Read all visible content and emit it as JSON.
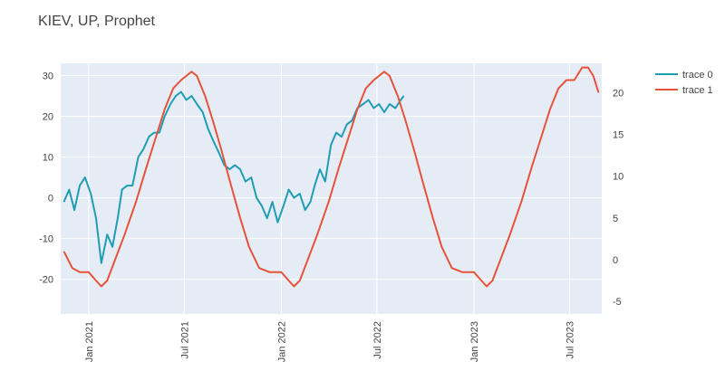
{
  "chart_data": {
    "type": "line",
    "title": "KIEV, UP, Prophet",
    "x_tick_labels": [
      "Jan 2021",
      "Jul 2021",
      "Jan 2022",
      "Jul 2022",
      "Jan 2023",
      "Jul 2023"
    ],
    "y_left": {
      "ticks": [
        -20,
        -10,
        0,
        10,
        20,
        30
      ],
      "range": [
        -28.5,
        33
      ]
    },
    "y_right": {
      "ticks": [
        -5,
        0,
        5,
        10,
        15,
        20
      ],
      "range": [
        -6.5,
        23.5
      ]
    },
    "grid": true,
    "legend_position": "top-right",
    "series": [
      {
        "name": "trace 0",
        "axis": "left",
        "color": "#1f9db3",
        "points": [
          [
            "2020-11-15",
            -1
          ],
          [
            "2020-11-25",
            2
          ],
          [
            "2020-12-05",
            -3
          ],
          [
            "2020-12-15",
            3
          ],
          [
            "2020-12-25",
            5
          ],
          [
            "2021-01-05",
            1
          ],
          [
            "2021-01-15",
            -5
          ],
          [
            "2021-01-25",
            -16
          ],
          [
            "2021-02-05",
            -9
          ],
          [
            "2021-02-15",
            -12
          ],
          [
            "2021-02-25",
            -5
          ],
          [
            "2021-03-05",
            2
          ],
          [
            "2021-03-15",
            3
          ],
          [
            "2021-03-25",
            3
          ],
          [
            "2021-04-05",
            10
          ],
          [
            "2021-04-15",
            12
          ],
          [
            "2021-04-25",
            15
          ],
          [
            "2021-05-05",
            16
          ],
          [
            "2021-05-15",
            16
          ],
          [
            "2021-05-25",
            20
          ],
          [
            "2021-06-05",
            23
          ],
          [
            "2021-06-15",
            25
          ],
          [
            "2021-06-25",
            26
          ],
          [
            "2021-07-05",
            24
          ],
          [
            "2021-07-15",
            25
          ],
          [
            "2021-07-25",
            23
          ],
          [
            "2021-08-05",
            21
          ],
          [
            "2021-08-15",
            17
          ],
          [
            "2021-08-25",
            14
          ],
          [
            "2021-09-05",
            11
          ],
          [
            "2021-09-15",
            8
          ],
          [
            "2021-09-25",
            7
          ],
          [
            "2021-10-05",
            8
          ],
          [
            "2021-10-15",
            7
          ],
          [
            "2021-10-25",
            4
          ],
          [
            "2021-11-05",
            5
          ],
          [
            "2021-11-15",
            0
          ],
          [
            "2021-11-25",
            -2
          ],
          [
            "2021-12-05",
            -5
          ],
          [
            "2021-12-15",
            -1
          ],
          [
            "2021-12-25",
            -6
          ],
          [
            "2022-01-05",
            -2
          ],
          [
            "2022-01-15",
            2
          ],
          [
            "2022-01-25",
            0
          ],
          [
            "2022-02-05",
            1
          ],
          [
            "2022-02-15",
            -3
          ],
          [
            "2022-02-25",
            -1
          ],
          [
            "2022-03-05",
            3
          ],
          [
            "2022-03-15",
            7
          ],
          [
            "2022-03-25",
            4
          ],
          [
            "2022-04-05",
            13
          ],
          [
            "2022-04-15",
            16
          ],
          [
            "2022-04-25",
            15
          ],
          [
            "2022-05-05",
            18
          ],
          [
            "2022-05-15",
            19
          ],
          [
            "2022-05-25",
            22
          ],
          [
            "2022-06-05",
            23
          ],
          [
            "2022-06-15",
            24
          ],
          [
            "2022-06-25",
            22
          ],
          [
            "2022-07-05",
            23
          ],
          [
            "2022-07-15",
            21
          ],
          [
            "2022-07-25",
            23
          ],
          [
            "2022-08-05",
            22
          ],
          [
            "2022-08-15",
            24
          ],
          [
            "2022-08-21",
            25
          ]
        ]
      },
      {
        "name": "trace 1",
        "axis": "right",
        "color": "#e5533a",
        "points": [
          [
            "2020-11-15",
            1
          ],
          [
            "2020-12-01",
            -1
          ],
          [
            "2020-12-15",
            -1.5
          ],
          [
            "2021-01-01",
            -1.5
          ],
          [
            "2021-01-15",
            -2.5
          ],
          [
            "2021-01-25",
            -3.2
          ],
          [
            "2021-02-05",
            -2.5
          ],
          [
            "2021-02-20",
            0
          ],
          [
            "2021-03-10",
            3
          ],
          [
            "2021-04-01",
            7
          ],
          [
            "2021-04-20",
            11
          ],
          [
            "2021-05-10",
            15
          ],
          [
            "2021-05-25",
            18
          ],
          [
            "2021-06-10",
            20.5
          ],
          [
            "2021-06-25",
            21.5
          ],
          [
            "2021-07-15",
            22.5
          ],
          [
            "2021-07-25",
            22
          ],
          [
            "2021-08-10",
            19.5
          ],
          [
            "2021-08-25",
            16.5
          ],
          [
            "2021-09-10",
            13
          ],
          [
            "2021-09-25",
            9.5
          ],
          [
            "2021-10-15",
            5
          ],
          [
            "2021-11-01",
            1.5
          ],
          [
            "2021-11-20",
            -1
          ],
          [
            "2021-12-10",
            -1.5
          ],
          [
            "2022-01-01",
            -1.5
          ],
          [
            "2022-01-15",
            -2.5
          ],
          [
            "2022-01-25",
            -3.2
          ],
          [
            "2022-02-05",
            -2.5
          ],
          [
            "2022-02-20",
            0
          ],
          [
            "2022-03-10",
            3
          ],
          [
            "2022-04-01",
            7
          ],
          [
            "2022-04-20",
            11
          ],
          [
            "2022-05-10",
            15
          ],
          [
            "2022-05-25",
            18
          ],
          [
            "2022-06-10",
            20.5
          ],
          [
            "2022-06-25",
            21.5
          ],
          [
            "2022-07-15",
            22.5
          ],
          [
            "2022-07-25",
            22
          ],
          [
            "2022-08-10",
            19.5
          ],
          [
            "2022-08-25",
            16.5
          ],
          [
            "2022-09-10",
            13
          ],
          [
            "2022-09-25",
            9.5
          ],
          [
            "2022-10-15",
            5
          ],
          [
            "2022-11-01",
            1.5
          ],
          [
            "2022-11-20",
            -1
          ],
          [
            "2022-12-10",
            -1.5
          ],
          [
            "2023-01-01",
            -1.5
          ],
          [
            "2023-01-15",
            -2.5
          ],
          [
            "2023-01-25",
            -3.2
          ],
          [
            "2023-02-05",
            -2.5
          ],
          [
            "2023-02-20",
            0
          ],
          [
            "2023-03-10",
            3
          ],
          [
            "2023-04-01",
            7
          ],
          [
            "2023-04-20",
            11
          ],
          [
            "2023-05-10",
            15
          ],
          [
            "2023-05-25",
            18
          ],
          [
            "2023-06-10",
            20.5
          ],
          [
            "2023-06-25",
            21.5
          ],
          [
            "2023-07-10",
            21.5
          ],
          [
            "2023-07-25",
            23
          ],
          [
            "2023-08-05",
            23
          ],
          [
            "2023-08-15",
            22
          ],
          [
            "2023-08-25",
            20
          ]
        ]
      }
    ]
  }
}
